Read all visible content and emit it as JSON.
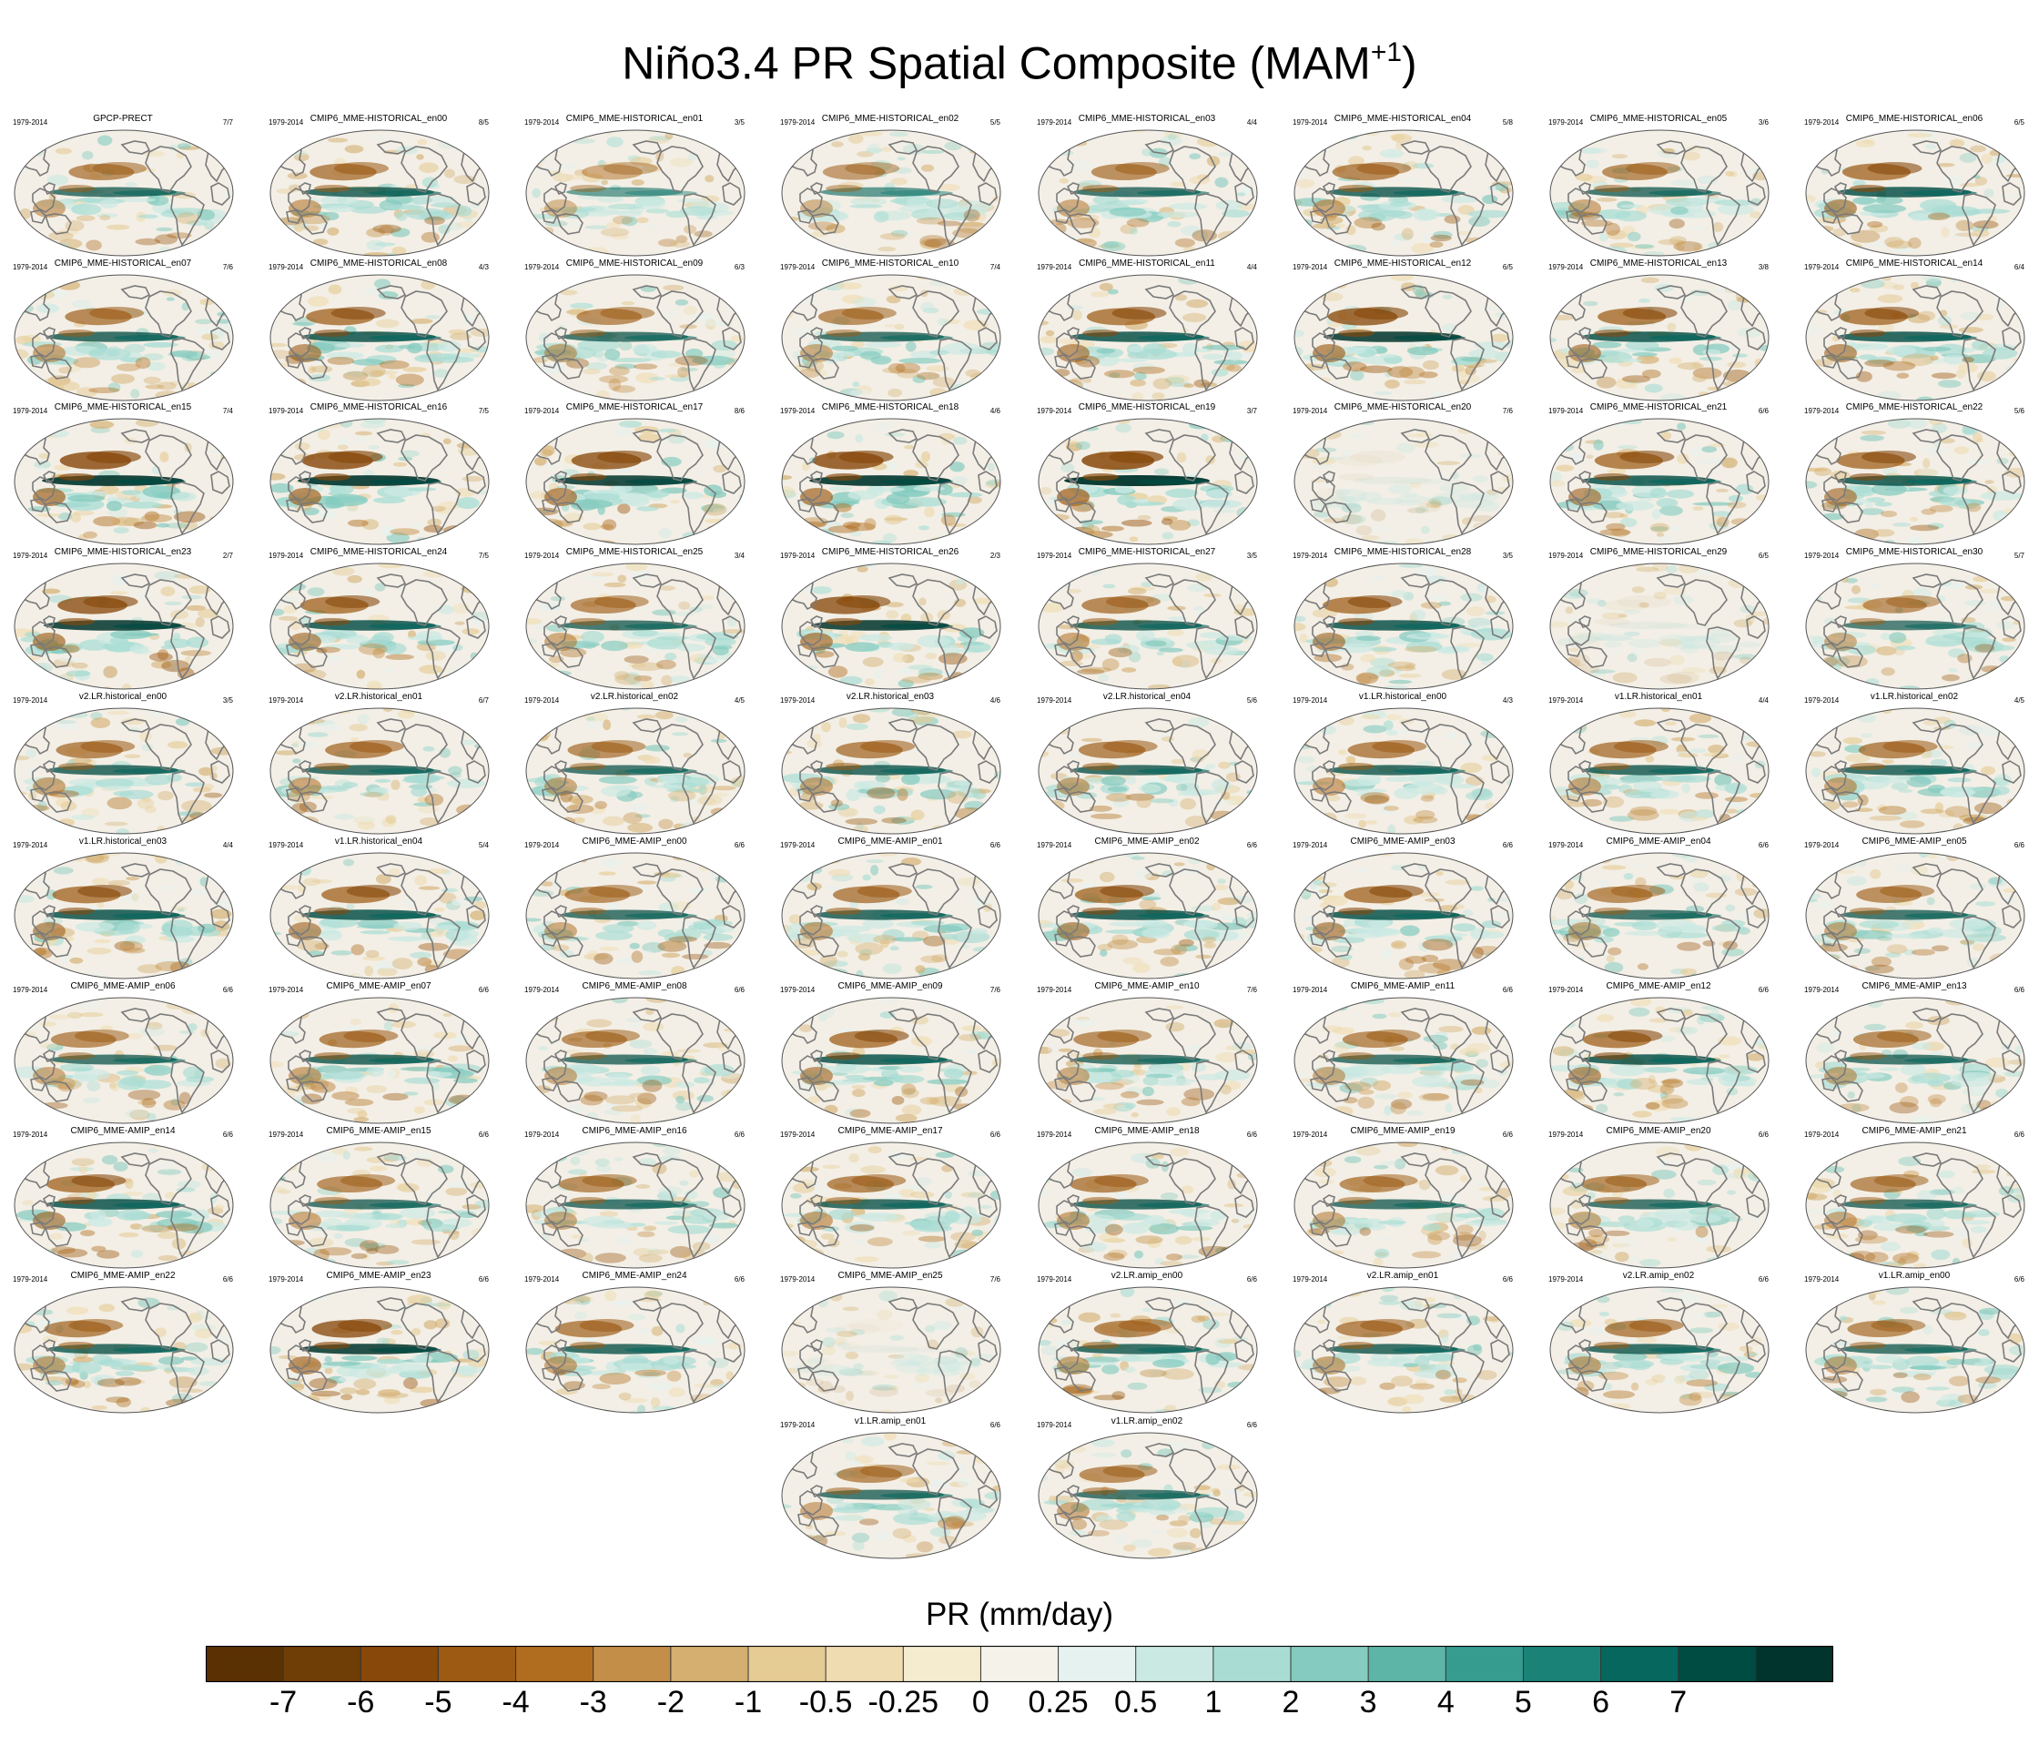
{
  "chart_data": {
    "type": "heatmap",
    "title_main": "Niño3.4 PR Spatial Composite (MAM",
    "title_sup": "+1",
    "title_end": ")",
    "period": "1979-2014",
    "panels": [
      {
        "name": "GPCP-PRECT",
        "ratio": "7/7",
        "strength": 0.75
      },
      {
        "name": "CMIP6_MME-HISTORICAL_en00",
        "ratio": "8/5",
        "strength": 0.8
      },
      {
        "name": "CMIP6_MME-HISTORICAL_en01",
        "ratio": "3/5",
        "strength": 0.6
      },
      {
        "name": "CMIP6_MME-HISTORICAL_en02",
        "ratio": "5/5",
        "strength": 0.65
      },
      {
        "name": "CMIP6_MME-HISTORICAL_en03",
        "ratio": "4/4",
        "strength": 0.75
      },
      {
        "name": "CMIP6_MME-HISTORICAL_en04",
        "ratio": "5/8",
        "strength": 0.8
      },
      {
        "name": "CMIP6_MME-HISTORICAL_en05",
        "ratio": "3/6",
        "strength": 0.75
      },
      {
        "name": "CMIP6_MME-HISTORICAL_en06",
        "ratio": "6/5",
        "strength": 0.85
      },
      {
        "name": "CMIP6_MME-HISTORICAL_en07",
        "ratio": "7/6",
        "strength": 0.8
      },
      {
        "name": "CMIP6_MME-HISTORICAL_en08",
        "ratio": "4/3",
        "strength": 0.85
      },
      {
        "name": "CMIP6_MME-HISTORICAL_en09",
        "ratio": "6/3",
        "strength": 0.75
      },
      {
        "name": "CMIP6_MME-HISTORICAL_en10",
        "ratio": "7/4",
        "strength": 0.75
      },
      {
        "name": "CMIP6_MME-HISTORICAL_en11",
        "ratio": "4/4",
        "strength": 0.85
      },
      {
        "name": "CMIP6_MME-HISTORICAL_en12",
        "ratio": "6/5",
        "strength": 0.9
      },
      {
        "name": "CMIP6_MME-HISTORICAL_en13",
        "ratio": "3/8",
        "strength": 0.85
      },
      {
        "name": "CMIP6_MME-HISTORICAL_en14",
        "ratio": "6/4",
        "strength": 0.85
      },
      {
        "name": "CMIP6_MME-HISTORICAL_en15",
        "ratio": "7/4",
        "strength": 0.95
      },
      {
        "name": "CMIP6_MME-HISTORICAL_en16",
        "ratio": "7/5",
        "strength": 0.95
      },
      {
        "name": "CMIP6_MME-HISTORICAL_en17",
        "ratio": "8/6",
        "strength": 0.9
      },
      {
        "name": "CMIP6_MME-HISTORICAL_en18",
        "ratio": "4/6",
        "strength": 0.95
      },
      {
        "name": "CMIP6_MME-HISTORICAL_en19",
        "ratio": "3/7",
        "strength": 1.0
      },
      {
        "name": "CMIP6_MME-HISTORICAL_en20",
        "ratio": "7/6",
        "strength": 0.08
      },
      {
        "name": "CMIP6_MME-HISTORICAL_en21",
        "ratio": "6/6",
        "strength": 0.85
      },
      {
        "name": "CMIP6_MME-HISTORICAL_en22",
        "ratio": "5/6",
        "strength": 0.85
      },
      {
        "name": "CMIP6_MME-HISTORICAL_en23",
        "ratio": "2/7",
        "strength": 0.9
      },
      {
        "name": "CMIP6_MME-HISTORICAL_en24",
        "ratio": "7/5",
        "strength": 0.85
      },
      {
        "name": "CMIP6_MME-HISTORICAL_en25",
        "ratio": "3/4",
        "strength": 0.75
      },
      {
        "name": "CMIP6_MME-HISTORICAL_en26",
        "ratio": "2/3",
        "strength": 0.9
      },
      {
        "name": "CMIP6_MME-HISTORICAL_en27",
        "ratio": "3/5",
        "strength": 0.8
      },
      {
        "name": "CMIP6_MME-HISTORICAL_en28",
        "ratio": "3/5",
        "strength": 0.85
      },
      {
        "name": "CMIP6_MME-HISTORICAL_en29",
        "ratio": "6/5",
        "strength": 0.08
      },
      {
        "name": "CMIP6_MME-HISTORICAL_en30",
        "ratio": "5/7",
        "strength": 0.7
      },
      {
        "name": "v2.LR.historical_en00",
        "ratio": "3/5",
        "strength": 0.8
      },
      {
        "name": "v2.LR.historical_en01",
        "ratio": "6/7",
        "strength": 0.8
      },
      {
        "name": "v2.LR.historical_en02",
        "ratio": "4/5",
        "strength": 0.75
      },
      {
        "name": "v2.LR.historical_en03",
        "ratio": "4/6",
        "strength": 0.8
      },
      {
        "name": "v2.LR.historical_en04",
        "ratio": "5/6",
        "strength": 0.8
      },
      {
        "name": "v1.LR.historical_en00",
        "ratio": "4/3",
        "strength": 0.8
      },
      {
        "name": "v1.LR.historical_en01",
        "ratio": "4/4",
        "strength": 0.8
      },
      {
        "name": "v1.LR.historical_en02",
        "ratio": "4/5",
        "strength": 0.8
      },
      {
        "name": "v1.LR.historical_en03",
        "ratio": "4/4",
        "strength": 0.85
      },
      {
        "name": "v1.LR.historical_en04",
        "ratio": "5/4",
        "strength": 0.85
      },
      {
        "name": "CMIP6_MME-AMIP_en00",
        "ratio": "6/6",
        "strength": 0.75
      },
      {
        "name": "CMIP6_MME-AMIP_en01",
        "ratio": "6/6",
        "strength": 0.8
      },
      {
        "name": "CMIP6_MME-AMIP_en02",
        "ratio": "6/6",
        "strength": 0.85
      },
      {
        "name": "CMIP6_MME-AMIP_en03",
        "ratio": "6/6",
        "strength": 0.85
      },
      {
        "name": "CMIP6_MME-AMIP_en04",
        "ratio": "6/6",
        "strength": 0.75
      },
      {
        "name": "CMIP6_MME-AMIP_en05",
        "ratio": "6/6",
        "strength": 0.75
      },
      {
        "name": "CMIP6_MME-AMIP_en06",
        "ratio": "6/6",
        "strength": 0.75
      },
      {
        "name": "CMIP6_MME-AMIP_en07",
        "ratio": "6/6",
        "strength": 0.8
      },
      {
        "name": "CMIP6_MME-AMIP_en08",
        "ratio": "6/6",
        "strength": 0.75
      },
      {
        "name": "CMIP6_MME-AMIP_en09",
        "ratio": "7/6",
        "strength": 0.85
      },
      {
        "name": "CMIP6_MME-AMIP_en10",
        "ratio": "7/6",
        "strength": 0.75
      },
      {
        "name": "CMIP6_MME-AMIP_en11",
        "ratio": "6/6",
        "strength": 0.75
      },
      {
        "name": "CMIP6_MME-AMIP_en12",
        "ratio": "6/6",
        "strength": 0.85
      },
      {
        "name": "CMIP6_MME-AMIP_en13",
        "ratio": "6/6",
        "strength": 0.75
      },
      {
        "name": "CMIP6_MME-AMIP_en14",
        "ratio": "6/6",
        "strength": 0.85
      },
      {
        "name": "CMIP6_MME-AMIP_en15",
        "ratio": "6/6",
        "strength": 0.75
      },
      {
        "name": "CMIP6_MME-AMIP_en16",
        "ratio": "6/6",
        "strength": 0.75
      },
      {
        "name": "CMIP6_MME-AMIP_en17",
        "ratio": "6/6",
        "strength": 0.8
      },
      {
        "name": "CMIP6_MME-AMIP_en18",
        "ratio": "6/6",
        "strength": 0.8
      },
      {
        "name": "CMIP6_MME-AMIP_en19",
        "ratio": "6/6",
        "strength": 0.75
      },
      {
        "name": "CMIP6_MME-AMIP_en20",
        "ratio": "6/6",
        "strength": 0.75
      },
      {
        "name": "CMIP6_MME-AMIP_en21",
        "ratio": "6/6",
        "strength": 0.75
      },
      {
        "name": "CMIP6_MME-AMIP_en22",
        "ratio": "6/6",
        "strength": 0.8
      },
      {
        "name": "CMIP6_MME-AMIP_en23",
        "ratio": "6/6",
        "strength": 0.9
      },
      {
        "name": "CMIP6_MME-AMIP_en24",
        "ratio": "6/6",
        "strength": 0.8
      },
      {
        "name": "CMIP6_MME-AMIP_en25",
        "ratio": "7/6",
        "strength": 0.06
      },
      {
        "name": "v2.LR.amip_en00",
        "ratio": "6/6",
        "strength": 0.8
      },
      {
        "name": "v2.LR.amip_en01",
        "ratio": "6/6",
        "strength": 0.8
      },
      {
        "name": "v2.LR.amip_en02",
        "ratio": "6/6",
        "strength": 0.8
      },
      {
        "name": "v1.LR.amip_en00",
        "ratio": "6/6",
        "strength": 0.75
      },
      {
        "name": "v1.LR.amip_en01",
        "ratio": "6/6",
        "strength": 0.75
      },
      {
        "name": "v1.LR.amip_en02",
        "ratio": "6/6",
        "strength": 0.75
      }
    ],
    "colorbar": {
      "title": "PR (mm/day)",
      "tick_labels": [
        "-7",
        "-6",
        "-5",
        "-4",
        "-3",
        "-2",
        "-1",
        "-0.5",
        "-0.25",
        "0",
        "0.25",
        "0.5",
        "1",
        "2",
        "3",
        "4",
        "5",
        "6",
        "7"
      ],
      "colors": [
        "#5a3103",
        "#6f3d06",
        "#87480a",
        "#9c5a13",
        "#b06d20",
        "#c38f48",
        "#d4af70",
        "#e5cb94",
        "#efdcb0",
        "#f5eccf",
        "#f5f2ea",
        "#e6f2ef",
        "#cbe9e3",
        "#a9ddd4",
        "#85cbbf",
        "#5db5a8",
        "#369c90",
        "#1b8278",
        "#06675e",
        "#004b42",
        "#00342c"
      ]
    }
  }
}
